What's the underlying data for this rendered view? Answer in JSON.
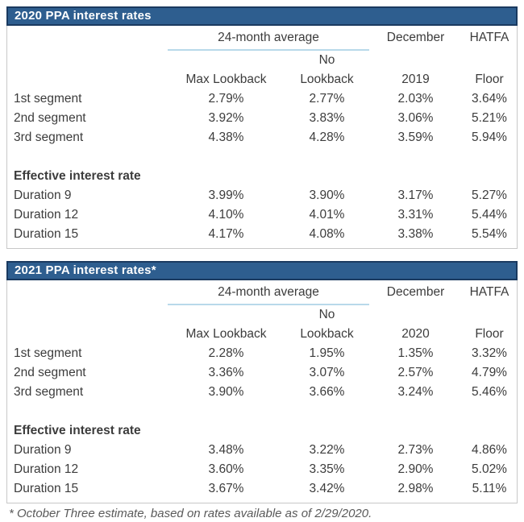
{
  "colors": {
    "title_bar_bg": "#2e5e8f",
    "title_bar_border": "#1a3a60",
    "body_border": "#c8c8c8",
    "group_underline": "#b8d9ea",
    "text": "#3c3c3c",
    "footnote_text": "#5a5a5a"
  },
  "footnote": "* October Three estimate, based on rates available as of 2/29/2020.",
  "chart_data": [
    {
      "type": "table",
      "title": "2020 PPA interest rates",
      "group_header": "24-month average",
      "december_header": "December",
      "hatfa_header": "HATFA",
      "no_line": "No",
      "subheaders": {
        "col1": "Max Lookback",
        "col2": "Lookback",
        "col3": "2019",
        "col4": "Floor"
      },
      "columns": [
        "",
        "Max Lookback",
        "No Lookback",
        "December 2019",
        "HATFA Floor"
      ],
      "segment_rows": [
        {
          "label": "1st segment",
          "values": [
            "2.79%",
            "2.77%",
            "2.03%",
            "3.64%"
          ]
        },
        {
          "label": "2nd segment",
          "values": [
            "3.92%",
            "3.83%",
            "3.06%",
            "5.21%"
          ]
        },
        {
          "label": "3rd segment",
          "values": [
            "4.38%",
            "4.28%",
            "3.59%",
            "5.94%"
          ]
        }
      ],
      "section_label": "Effective interest rate",
      "duration_rows": [
        {
          "label": "Duration 9",
          "values": [
            "3.99%",
            "3.90%",
            "3.17%",
            "5.27%"
          ]
        },
        {
          "label": "Duration 12",
          "values": [
            "4.10%",
            "4.01%",
            "3.31%",
            "5.44%"
          ]
        },
        {
          "label": "Duration 15",
          "values": [
            "4.17%",
            "4.08%",
            "3.38%",
            "5.54%"
          ]
        }
      ]
    },
    {
      "type": "table",
      "title": "2021 PPA interest rates*",
      "group_header": "24-month average",
      "december_header": "December",
      "hatfa_header": "HATFA",
      "no_line": "No",
      "subheaders": {
        "col1": "Max Lookback",
        "col2": "Lookback",
        "col3": "2020",
        "col4": "Floor"
      },
      "columns": [
        "",
        "Max Lookback",
        "No Lookback",
        "December 2020",
        "HATFA Floor"
      ],
      "segment_rows": [
        {
          "label": "1st segment",
          "values": [
            "2.28%",
            "1.95%",
            "1.35%",
            "3.32%"
          ]
        },
        {
          "label": "2nd segment",
          "values": [
            "3.36%",
            "3.07%",
            "2.57%",
            "4.79%"
          ]
        },
        {
          "label": "3rd segment",
          "values": [
            "3.90%",
            "3.66%",
            "3.24%",
            "5.46%"
          ]
        }
      ],
      "section_label": "Effective interest rate",
      "duration_rows": [
        {
          "label": "Duration 9",
          "values": [
            "3.48%",
            "3.22%",
            "2.73%",
            "4.86%"
          ]
        },
        {
          "label": "Duration 12",
          "values": [
            "3.60%",
            "3.35%",
            "2.90%",
            "5.02%"
          ]
        },
        {
          "label": "Duration 15",
          "values": [
            "3.67%",
            "3.42%",
            "2.98%",
            "5.11%"
          ]
        }
      ]
    }
  ]
}
